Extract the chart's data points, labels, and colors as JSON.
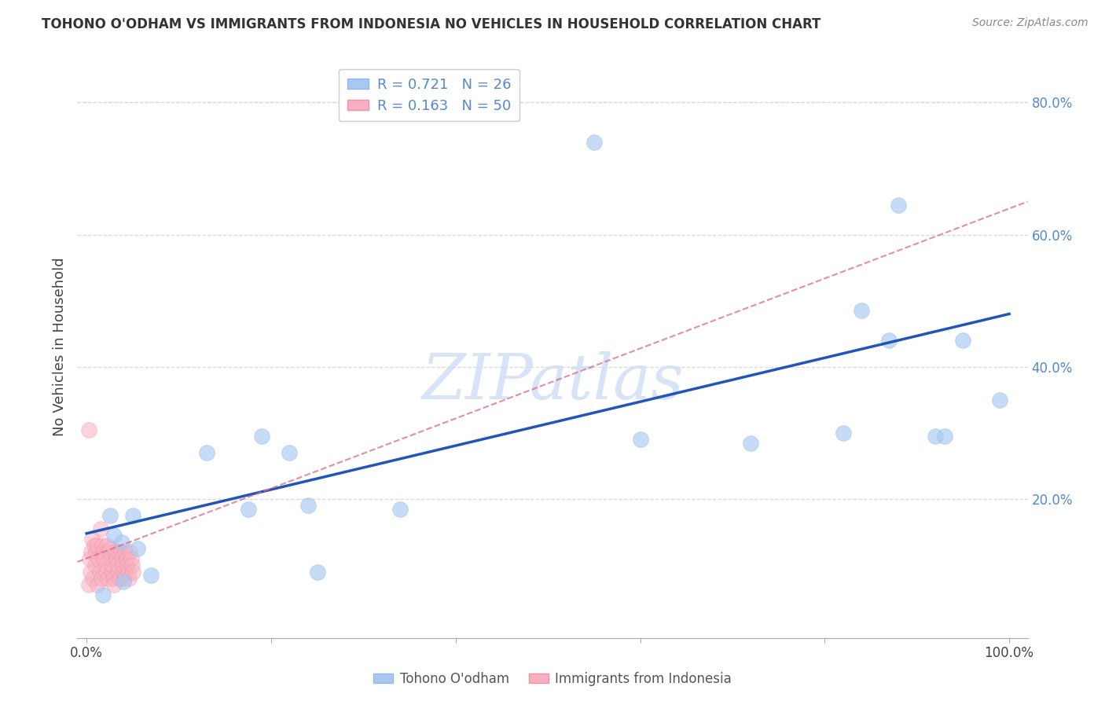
{
  "title": "TOHONO O'ODHAM VS IMMIGRANTS FROM INDONESIA NO VEHICLES IN HOUSEHOLD CORRELATION CHART",
  "source": "Source: ZipAtlas.com",
  "ylabel": "No Vehicles in Household",
  "xlim": [
    -0.01,
    1.02
  ],
  "ylim": [
    -0.01,
    0.87
  ],
  "xtick_values": [
    0.0,
    0.2,
    0.4,
    0.6,
    0.8,
    1.0
  ],
  "ytick_values": [
    0.2,
    0.4,
    0.6,
    0.8
  ],
  "legend_blue_r": "0.721",
  "legend_blue_n": "26",
  "legend_pink_r": "0.163",
  "legend_pink_n": "50",
  "blue_scatter_x": [
    0.018,
    0.025,
    0.03,
    0.038,
    0.04,
    0.05,
    0.055,
    0.07,
    0.13,
    0.175,
    0.19,
    0.22,
    0.24,
    0.25,
    0.34,
    0.55,
    0.72,
    0.82,
    0.84,
    0.87,
    0.88,
    0.92,
    0.93,
    0.95,
    0.99,
    0.6
  ],
  "blue_scatter_y": [
    0.055,
    0.175,
    0.145,
    0.135,
    0.075,
    0.175,
    0.125,
    0.085,
    0.27,
    0.185,
    0.295,
    0.27,
    0.19,
    0.09,
    0.185,
    0.74,
    0.285,
    0.3,
    0.485,
    0.44,
    0.645,
    0.295,
    0.295,
    0.44,
    0.35,
    0.29
  ],
  "pink_scatter_x": [
    0.002,
    0.003,
    0.004,
    0.005,
    0.006,
    0.007,
    0.008,
    0.009,
    0.01,
    0.011,
    0.012,
    0.013,
    0.014,
    0.015,
    0.016,
    0.017,
    0.018,
    0.019,
    0.02,
    0.021,
    0.022,
    0.023,
    0.024,
    0.025,
    0.026,
    0.027,
    0.028,
    0.029,
    0.03,
    0.031,
    0.032,
    0.033,
    0.034,
    0.035,
    0.036,
    0.037,
    0.038,
    0.039,
    0.04,
    0.041,
    0.042,
    0.043,
    0.044,
    0.045,
    0.046,
    0.047,
    0.048,
    0.049,
    0.05,
    0.002
  ],
  "pink_scatter_y": [
    0.07,
    0.11,
    0.09,
    0.12,
    0.14,
    0.08,
    0.13,
    0.1,
    0.12,
    0.13,
    0.07,
    0.11,
    0.09,
    0.155,
    0.08,
    0.13,
    0.12,
    0.11,
    0.1,
    0.09,
    0.13,
    0.08,
    0.12,
    0.125,
    0.11,
    0.09,
    0.1,
    0.08,
    0.07,
    0.12,
    0.11,
    0.1,
    0.09,
    0.12,
    0.08,
    0.12,
    0.11,
    0.1,
    0.09,
    0.08,
    0.12,
    0.11,
    0.1,
    0.09,
    0.08,
    0.12,
    0.11,
    0.1,
    0.09,
    0.305
  ],
  "blue_line_x0": 0.0,
  "blue_line_x1": 1.0,
  "blue_line_y0": 0.148,
  "blue_line_y1": 0.48,
  "pink_line_x0": -0.01,
  "pink_line_x1": 1.02,
  "pink_line_y0": 0.105,
  "pink_line_y1": 0.65,
  "blue_color": "#a8c8f0",
  "blue_edge_color": "#90b8e8",
  "pink_color": "#f8b0c0",
  "pink_edge_color": "#f090a8",
  "blue_line_color": "#2255bb",
  "pink_line_color": "#dd6688",
  "watermark_color": "#d0dff5",
  "background_color": "#ffffff",
  "grid_color": "#d8d8d8"
}
